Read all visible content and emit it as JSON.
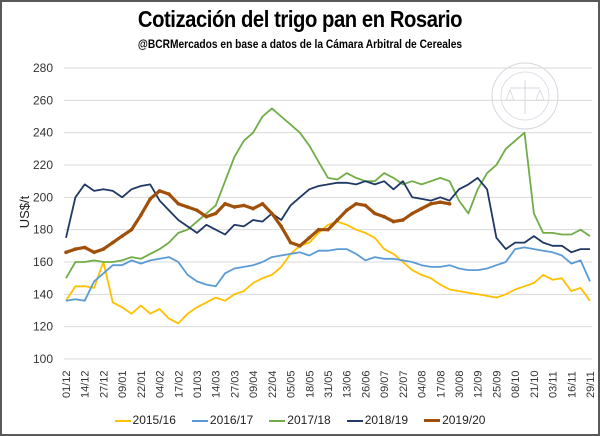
{
  "chart_data": {
    "type": "line",
    "title": "Cotización del trigo pan en Rosario",
    "subtitle": "@BCRMercados  en base a datos de la Cámara Arbitral de Cereales",
    "xlabel": "",
    "ylabel": "US$/t",
    "ylim": [
      100,
      280
    ],
    "yticks": [
      100,
      120,
      140,
      160,
      180,
      200,
      220,
      240,
      260,
      280
    ],
    "grid": true,
    "legend": "bottom",
    "watermark": "BOLSA DE COMERCIO DE ROSARIO",
    "x_tick_labels": [
      "01/12",
      "14/12",
      "27/12",
      "09/01",
      "22/01",
      "04/02",
      "17/02",
      "01/03",
      "14/03",
      "27/03",
      "09/04",
      "22/04",
      "05/05",
      "18/05",
      "31/05",
      "13/06",
      "26/06",
      "09/07",
      "22/07",
      "04/08",
      "17/08",
      "30/08",
      "12/09",
      "25/09",
      "08/10",
      "21/10",
      "03/11",
      "16/11",
      "29/11"
    ],
    "x_note": "values sampled every half tick interval (index 0 = 01/12, index 56 = 29/11)",
    "series": [
      {
        "name": "2015/16",
        "color": "#FFC000",
        "values": [
          136,
          145,
          145,
          144,
          160,
          135,
          132,
          128,
          133,
          128,
          131,
          125,
          122,
          128,
          132,
          135,
          138,
          136,
          140,
          142,
          147,
          150,
          152,
          157,
          165,
          170,
          172,
          178,
          183,
          185,
          183,
          180,
          178,
          175,
          168,
          165,
          160,
          155,
          152,
          150,
          146,
          143,
          142,
          141,
          140,
          139,
          138,
          140,
          143,
          145,
          147,
          152,
          149,
          150,
          142,
          144,
          136
        ]
      },
      {
        "name": "2016/17",
        "color": "#5B9BD5",
        "values": [
          136,
          137,
          136,
          148,
          153,
          158,
          158,
          161,
          159,
          161,
          162,
          163,
          160,
          152,
          148,
          146,
          145,
          153,
          156,
          157,
          158,
          160,
          163,
          164,
          165,
          166,
          164,
          167,
          167,
          168,
          168,
          165,
          161,
          163,
          162,
          162,
          161,
          160,
          158,
          157,
          157,
          158,
          156,
          155,
          155,
          156,
          158,
          160,
          168,
          169,
          168,
          167,
          166,
          164,
          159,
          161,
          148
        ]
      },
      {
        "name": "2017/18",
        "color": "#70AD47",
        "values": [
          150,
          160,
          160,
          161,
          160,
          160,
          161,
          163,
          162,
          165,
          168,
          172,
          178,
          180,
          185,
          190,
          195,
          210,
          225,
          235,
          240,
          250,
          255,
          250,
          245,
          240,
          232,
          222,
          212,
          211,
          215,
          212,
          210,
          210,
          215,
          212,
          208,
          210,
          208,
          210,
          212,
          210,
          198,
          190,
          205,
          215,
          220,
          230,
          235,
          240,
          190,
          178,
          178,
          177,
          177,
          180,
          176
        ]
      },
      {
        "name": "2018/19",
        "color": "#1F3864",
        "values": [
          175,
          200,
          208,
          204,
          205,
          204,
          200,
          205,
          207,
          208,
          198,
          192,
          186,
          182,
          178,
          183,
          180,
          177,
          183,
          182,
          186,
          185,
          190,
          186,
          195,
          200,
          205,
          207,
          208,
          209,
          209,
          208,
          210,
          208,
          210,
          205,
          210,
          200,
          199,
          198,
          200,
          198,
          205,
          208,
          212,
          205,
          175,
          168,
          172,
          172,
          176,
          172,
          170,
          170,
          166,
          168,
          168
        ]
      },
      {
        "name": "2019/20",
        "color": "#A0500A",
        "values": [
          166,
          168,
          169,
          166,
          168,
          172,
          176,
          180,
          189,
          199,
          204,
          202,
          196,
          194,
          192,
          188,
          190,
          196,
          194,
          195,
          193,
          196,
          190,
          182,
          172,
          170,
          175,
          180,
          180,
          186,
          192,
          196,
          195,
          190,
          188,
          185,
          186,
          190,
          193,
          196,
          197,
          196
        ]
      }
    ]
  }
}
